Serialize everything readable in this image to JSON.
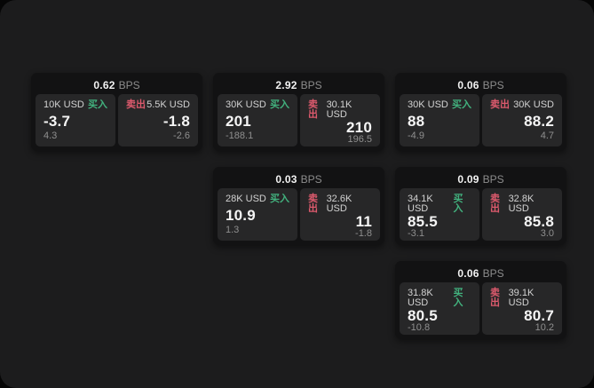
{
  "labels": {
    "buy": "买入",
    "sell": "卖出",
    "bps_unit": "BPS"
  },
  "colors": {
    "buy": "#42b27e",
    "sell": "#dd5a6d",
    "panel_background": "#1c1c1d",
    "card_background": "#121213",
    "cell_background": "#272728"
  },
  "cards": [
    {
      "bps": "0.62",
      "grid": {
        "col": 0,
        "row": 0
      },
      "buy": {
        "size": "10K USD",
        "price": "-3.7",
        "change": "4.3"
      },
      "sell": {
        "size": "5.5K USD",
        "price": "-1.8",
        "change": "-2.6"
      }
    },
    {
      "bps": "2.92",
      "grid": {
        "col": 1,
        "row": 0
      },
      "buy": {
        "size": "30K USD",
        "price": "201",
        "change": "-188.1"
      },
      "sell": {
        "size": "30.1K USD",
        "price": "210",
        "change": "196.5"
      }
    },
    {
      "bps": "0.06",
      "grid": {
        "col": 2,
        "row": 0
      },
      "buy": {
        "size": "30K USD",
        "price": "88",
        "change": "-4.9"
      },
      "sell": {
        "size": "30K USD",
        "price": "88.2",
        "change": "4.7"
      }
    },
    {
      "bps": "0.03",
      "grid": {
        "col": 1,
        "row": 1
      },
      "buy": {
        "size": "28K USD",
        "price": "10.9",
        "change": "1.3"
      },
      "sell": {
        "size": "32.6K USD",
        "price": "11",
        "change": "-1.8"
      }
    },
    {
      "bps": "0.09",
      "grid": {
        "col": 2,
        "row": 1
      },
      "buy": {
        "size": "34.1K USD",
        "price": "85.5",
        "change": "-3.1"
      },
      "sell": {
        "size": "32.8K USD",
        "price": "85.8",
        "change": "3.0"
      }
    },
    {
      "bps": "0.06",
      "grid": {
        "col": 2,
        "row": 2
      },
      "buy": {
        "size": "31.8K USD",
        "price": "80.5",
        "change": "-10.8"
      },
      "sell": {
        "size": "39.1K USD",
        "price": "80.7",
        "change": "10.2"
      }
    }
  ]
}
